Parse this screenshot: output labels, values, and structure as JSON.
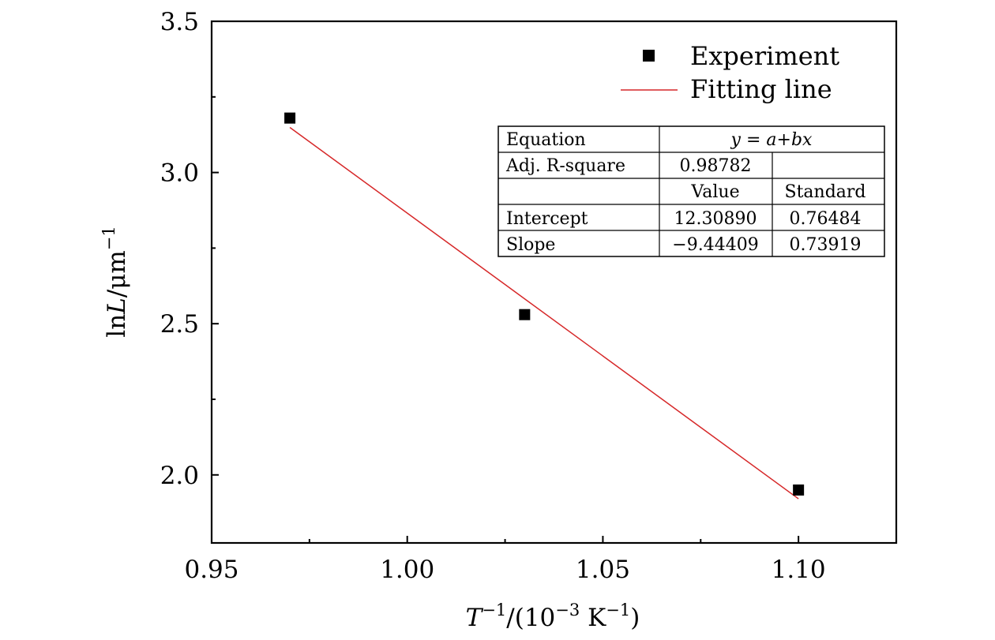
{
  "chart_data": {
    "type": "scatter",
    "xlabel": {
      "base": "T",
      "sup1": "−1",
      "mid": "/(10",
      "sup2": "−3",
      "mid2": " K",
      "sup3": "−1",
      "end": ")"
    },
    "ylabel": {
      "pre": "ln",
      "var": "L",
      "mid": "/μm",
      "sup": "−1"
    },
    "xlim": [
      0.95,
      1.125
    ],
    "ylim": [
      1.775,
      3.5
    ],
    "x_ticks": [
      {
        "value": 0.95,
        "label": "0.95"
      },
      {
        "value": 1.0,
        "label": "1.00"
      },
      {
        "value": 1.05,
        "label": "1.05"
      },
      {
        "value": 1.1,
        "label": "1.10"
      }
    ],
    "x_minor_ticks": [
      0.975,
      1.025,
      1.075
    ],
    "y_ticks": [
      {
        "value": 2.0,
        "label": "2.0"
      },
      {
        "value": 2.5,
        "label": "2.5"
      },
      {
        "value": 3.0,
        "label": "3.0"
      },
      {
        "value": 3.5,
        "label": "3.5"
      }
    ],
    "y_minor_ticks": [
      2.25,
      2.75,
      3.25
    ],
    "series": [
      {
        "name": "Experiment",
        "kind": "points",
        "marker": "square",
        "color": "#000000",
        "x": [
          0.97,
          1.03,
          1.1
        ],
        "y": [
          3.18,
          2.53,
          1.95
        ]
      },
      {
        "name": "Fitting line",
        "kind": "line",
        "color": "#d62728",
        "x": [
          0.97,
          1.1
        ],
        "y": [
          3.149,
          1.921
        ]
      }
    ],
    "legend_position": "top-right",
    "fit_table": {
      "rows": [
        [
          "Equation",
          "y = a+bx",
          ""
        ],
        [
          "Adj. R-square",
          "0.98782",
          ""
        ],
        [
          "",
          "Value",
          "Standard"
        ],
        [
          "Intercept",
          "12.30890",
          "0.76484"
        ],
        [
          "Slope",
          "−9.44409",
          "0.73919"
        ]
      ]
    }
  }
}
